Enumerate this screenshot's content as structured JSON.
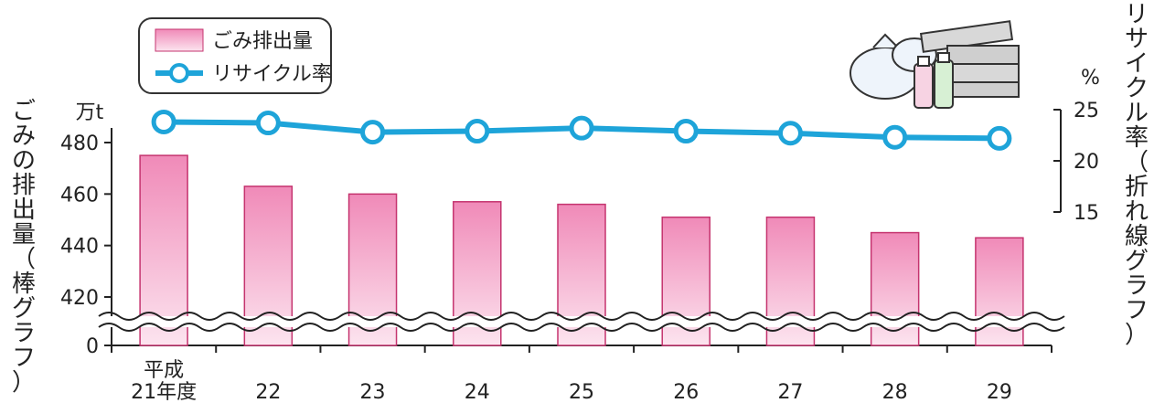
{
  "chart_data": {
    "type": "bar+line",
    "categories": [
      "平成\n21年度",
      "22",
      "23",
      "24",
      "25",
      "26",
      "27",
      "28",
      "29"
    ],
    "series": [
      {
        "name": "ごみ排出量",
        "type": "bar",
        "axis": "left",
        "values": [
          475,
          463,
          460,
          457,
          456,
          451,
          451,
          445,
          443
        ]
      },
      {
        "name": "リサイクル率",
        "type": "line",
        "axis": "right",
        "values": [
          23.8,
          23.7,
          22.8,
          22.9,
          23.2,
          22.9,
          22.7,
          22.3,
          22.2
        ]
      }
    ],
    "left_axis": {
      "unit": "万t",
      "ticks": [
        0,
        420,
        440,
        460,
        480
      ],
      "label": "ごみの排出量（棒グラフ）",
      "ylim": [
        410,
        485
      ],
      "broken": true
    },
    "right_axis": {
      "unit": "%",
      "ticks": [
        15,
        20,
        25
      ],
      "label": "リサイクル率（折れ線グラフ）",
      "ylim": [
        15,
        25
      ]
    },
    "legend": {
      "placement": "top-left",
      "bar_label": "ごみ排出量",
      "line_label": "リサイクル率"
    },
    "colors": {
      "bar_top": "#f08ab8",
      "bar_bottom": "#fce4ef",
      "bar_stroke": "#c5346f",
      "line": "#1ea4d9",
      "axis": "#222222"
    },
    "grid": false
  }
}
